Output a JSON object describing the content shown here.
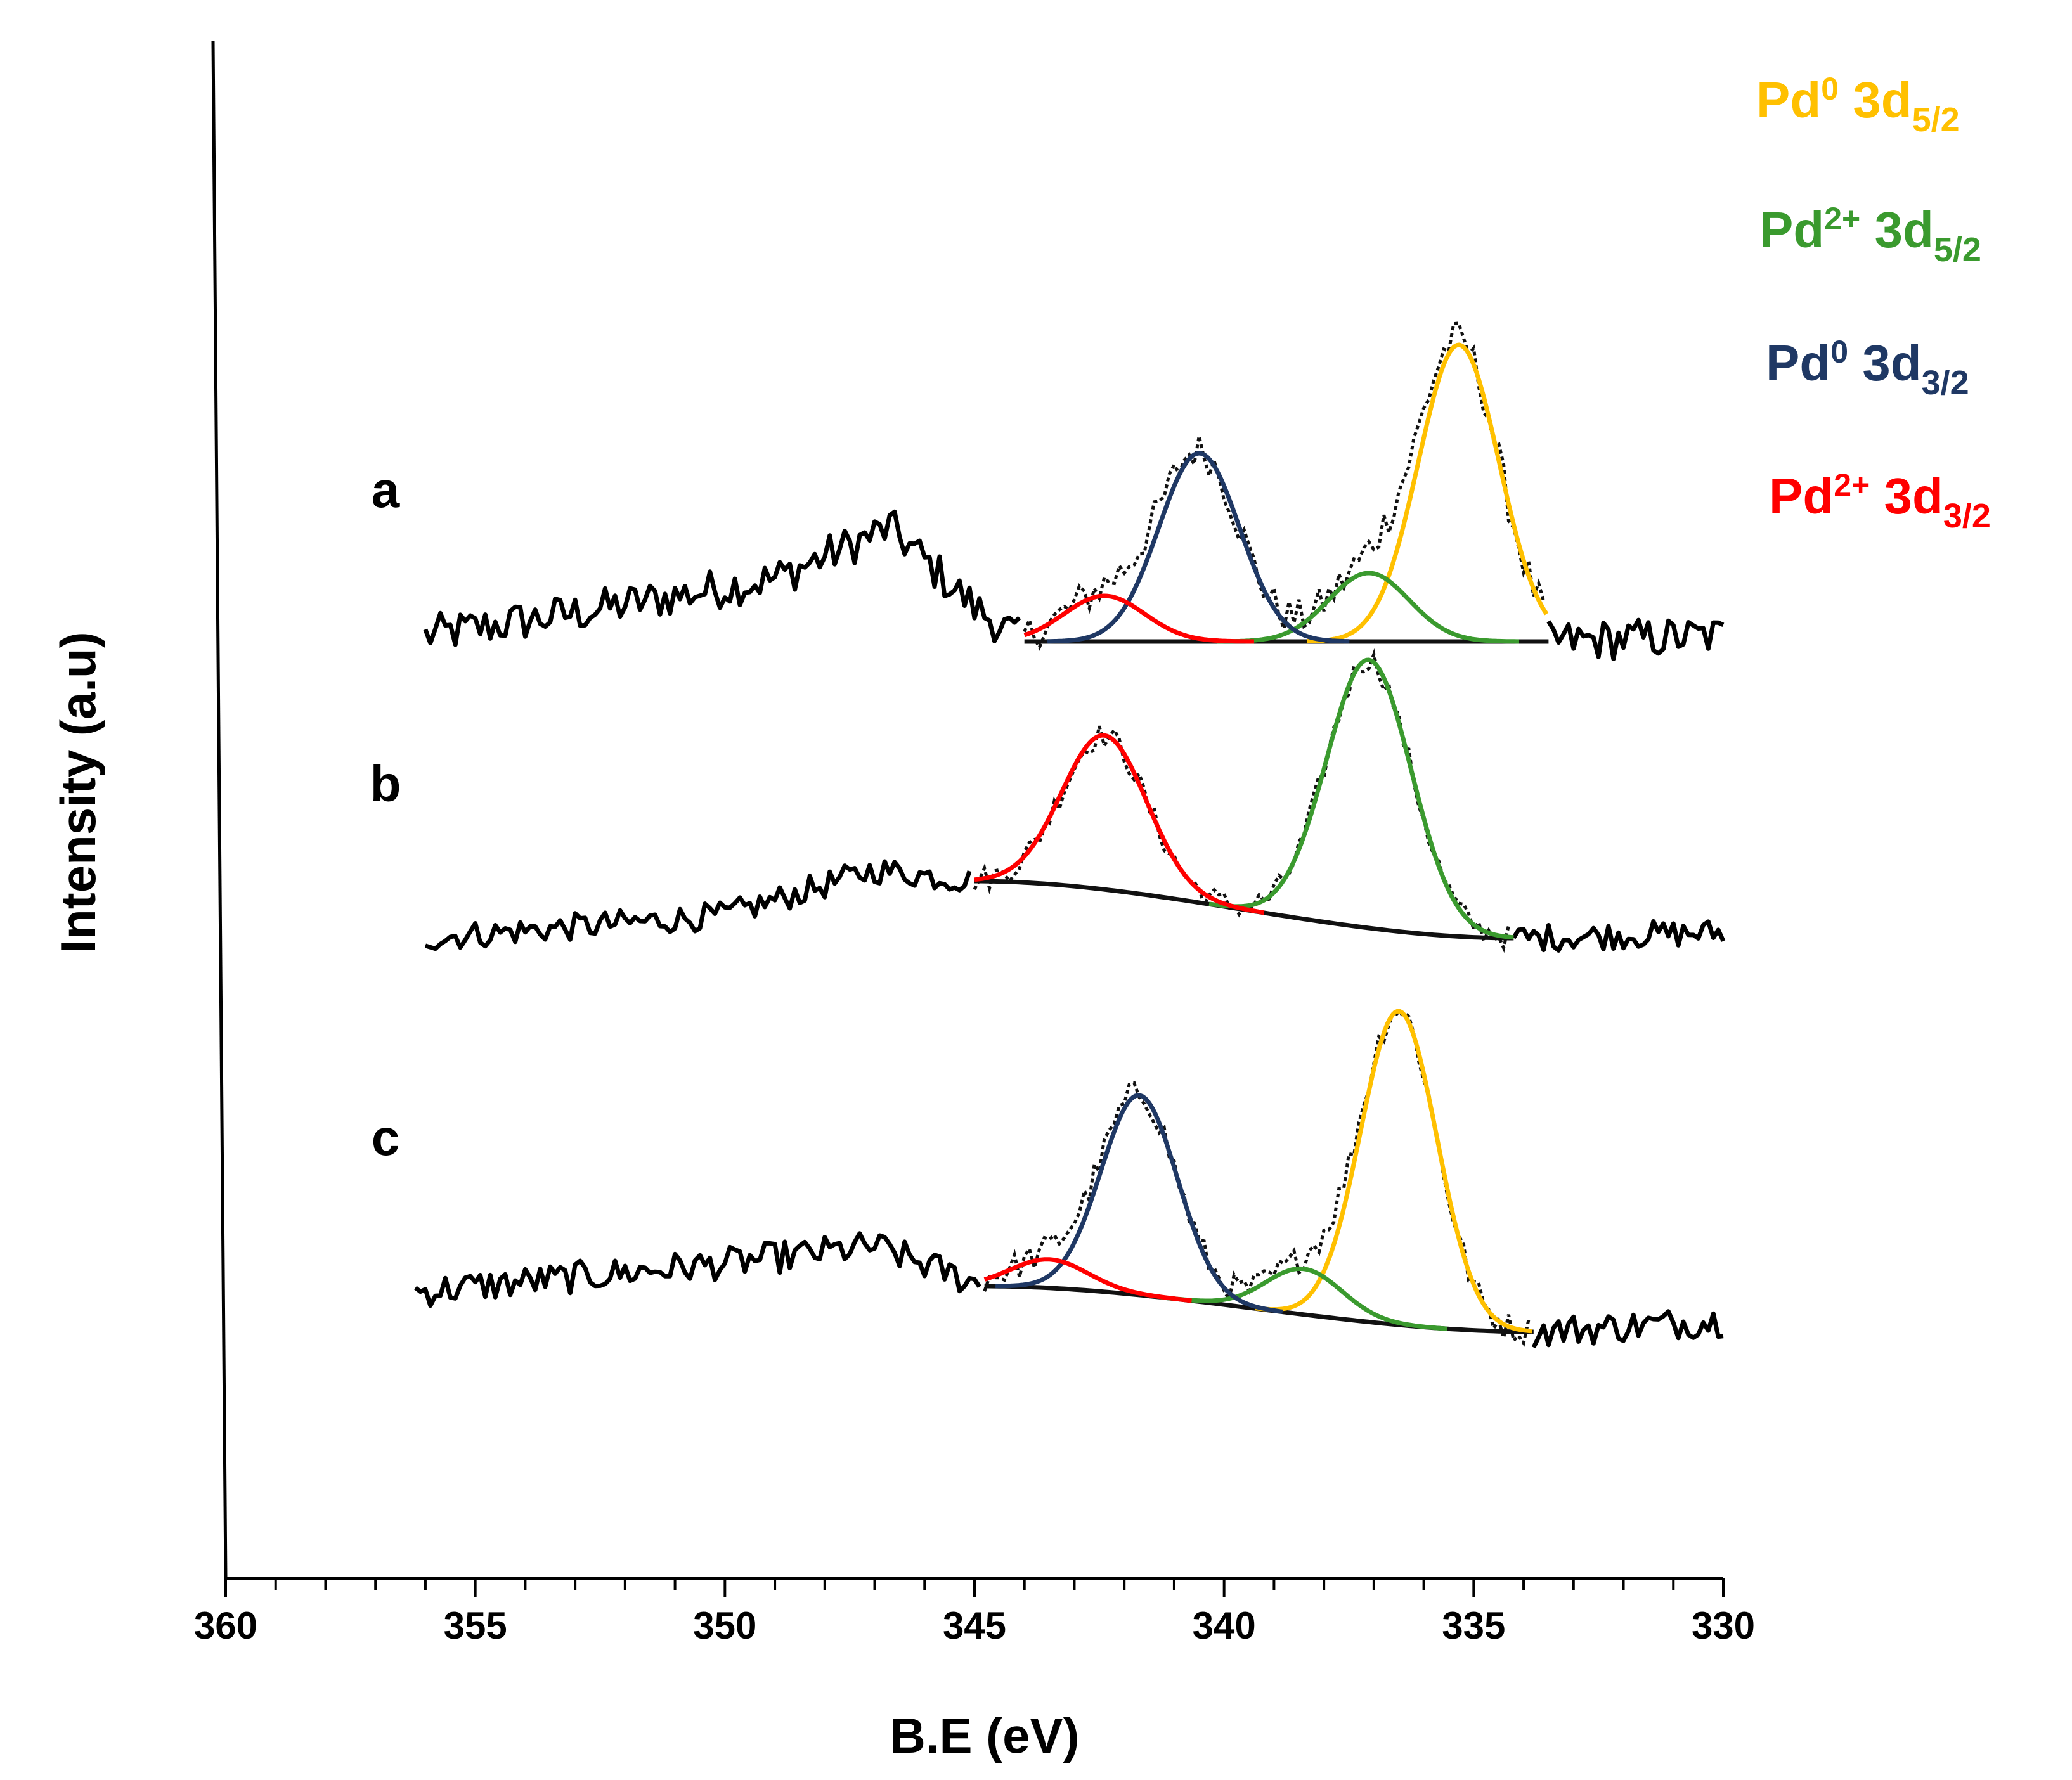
{
  "chart_data": {
    "type": "line",
    "title": "",
    "xlabel": "B.E (eV)",
    "ylabel": "Intensity (a.u)",
    "xlim": [
      360,
      330
    ],
    "x_reversed": true,
    "x_ticks": [
      360,
      355,
      350,
      345,
      340,
      335,
      330
    ],
    "x_tick_labels": [
      "360",
      "355",
      "350",
      "345",
      "340",
      "335",
      "330"
    ],
    "y_unit": "arbitrary (stacked spectra, offset)",
    "legend": [
      {
        "label": "Pd",
        "sup": "0",
        "orbital": " 3d",
        "sub": "5/2",
        "color": "#FFC000"
      },
      {
        "label": "Pd",
        "sup": "2+",
        "orbital": " 3d",
        "sub": "5/2",
        "color": "#3A9A2E"
      },
      {
        "label": "Pd",
        "sup": "0",
        "orbital": " 3d",
        "sub": "3/2",
        "color": "#1F3864"
      },
      {
        "label": "Pd",
        "sup": "2+",
        "orbital": " 3d",
        "sub": "3/2",
        "color": "#FF0000"
      }
    ],
    "series": [
      {
        "name": "a",
        "baseline_offset": 2.6,
        "range": [
          356,
          330
        ],
        "fit_range": [
          344,
          333.5
        ],
        "background": {
          "start": [
            344,
            0.0
          ],
          "end": [
            333.5,
            0.0
          ]
        },
        "trend": [
          [
            356,
            0.05
          ],
          [
            353,
            0.25
          ],
          [
            349,
            0.55
          ],
          [
            346.7,
            1.0
          ],
          [
            345,
            0.3
          ],
          [
            344,
            0.0
          ],
          [
            333.5,
            0.0
          ],
          [
            330,
            0.05
          ]
        ],
        "noise": 0.18,
        "peaks": [
          {
            "component": "Pd0 3d5/2",
            "center": 335.3,
            "height": 2.6,
            "fwhm": 1.9,
            "color": "#FFC000"
          },
          {
            "component": "Pd2+ 3d5/2",
            "center": 337.1,
            "height": 0.6,
            "fwhm": 1.9,
            "color": "#3A9A2E"
          },
          {
            "component": "Pd0 3d3/2",
            "center": 340.5,
            "height": 1.65,
            "fwhm": 1.9,
            "color": "#1F3864"
          },
          {
            "component": "Pd2+ 3d3/2",
            "center": 342.4,
            "height": 0.4,
            "fwhm": 1.9,
            "color": "#FF0000"
          }
        ]
      },
      {
        "name": "b",
        "baseline_offset": 0.0,
        "range": [
          356,
          330
        ],
        "fit_range": [
          345,
          334.2
        ],
        "background": {
          "start": [
            345,
            0.5
          ],
          "end": [
            334.2,
            0.0
          ]
        },
        "trend": [
          [
            356,
            0.0
          ],
          [
            350,
            0.2
          ],
          [
            347,
            0.6
          ],
          [
            345,
            0.5
          ],
          [
            334.2,
            0.0
          ],
          [
            330,
            0.05
          ]
        ],
        "noise": 0.12,
        "peaks": [
          {
            "component": "Pd2+ 3d5/2",
            "center": 337.1,
            "height": 2.35,
            "fwhm": 2.0,
            "color": "#3A9A2E"
          },
          {
            "component": "Pd2+ 3d3/2",
            "center": 342.4,
            "height": 1.35,
            "fwhm": 2.0,
            "color": "#FF0000"
          }
        ]
      },
      {
        "name": "c",
        "baseline_offset": -3.1,
        "range": [
          356.2,
          330
        ],
        "fit_range": [
          344.8,
          333.8
        ],
        "background": {
          "start": [
            344.8,
            0.05
          ],
          "end": [
            333.8,
            -0.35
          ]
        },
        "trend": [
          [
            356.2,
            0.0
          ],
          [
            350,
            0.25
          ],
          [
            347,
            0.4
          ],
          [
            344.8,
            0.05
          ],
          [
            333.8,
            -0.35
          ],
          [
            330,
            -0.25
          ]
        ],
        "noise": 0.14,
        "peaks": [
          {
            "component": "Pd0 3d5/2",
            "center": 336.5,
            "height": 2.75,
            "fwhm": 1.8,
            "color": "#FFC000"
          },
          {
            "component": "Pd2+ 3d5/2",
            "center": 338.4,
            "height": 0.4,
            "fwhm": 1.8,
            "color": "#3A9A2E"
          },
          {
            "component": "Pd0 3d3/2",
            "center": 341.7,
            "height": 1.75,
            "fwhm": 1.8,
            "color": "#1F3864"
          },
          {
            "component": "Pd2+ 3d3/2",
            "center": 343.5,
            "height": 0.25,
            "fwhm": 1.8,
            "color": "#FF0000"
          }
        ]
      }
    ]
  }
}
